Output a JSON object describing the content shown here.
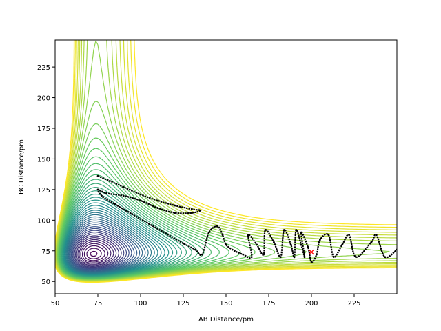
{
  "chart_data": {
    "type": "contour",
    "xlabel": "AB Distance/pm",
    "ylabel": "BC Distance/pm",
    "xlim": [
      50,
      250
    ],
    "ylim": [
      40,
      247
    ],
    "x_ticks": [
      50,
      75,
      100,
      125,
      150,
      175,
      200,
      225
    ],
    "y_ticks": [
      50,
      75,
      100,
      125,
      150,
      175,
      200,
      225
    ],
    "colormap": [
      "#440154",
      "#3b528b",
      "#21918c",
      "#5ec962",
      "#fde725"
    ],
    "contour_levels": 48,
    "trajectory_color": "#000000",
    "marker": {
      "x": 200,
      "y": 74,
      "symbol": "x",
      "color": "#ff0000"
    },
    "trajectory": [
      [
        75,
        136
      ],
      [
        82,
        132
      ],
      [
        90,
        127
      ],
      [
        100,
        121
      ],
      [
        110,
        116
      ],
      [
        120,
        112
      ],
      [
        130,
        109
      ],
      [
        135,
        108
      ],
      [
        130,
        106
      ],
      [
        120,
        106
      ],
      [
        110,
        110
      ],
      [
        100,
        116
      ],
      [
        90,
        120
      ],
      [
        80,
        122
      ],
      [
        75,
        125
      ],
      [
        78,
        119
      ],
      [
        85,
        113
      ],
      [
        95,
        105
      ],
      [
        105,
        97
      ],
      [
        115,
        89
      ],
      [
        125,
        81
      ],
      [
        132,
        76
      ],
      [
        136,
        72
      ],
      [
        140,
        90
      ],
      [
        145,
        95
      ],
      [
        148,
        88
      ],
      [
        150,
        80
      ],
      [
        155,
        75
      ],
      [
        160,
        72
      ],
      [
        165,
        70
      ],
      [
        163,
        88
      ],
      [
        168,
        80
      ],
      [
        172,
        72
      ],
      [
        173,
        92
      ],
      [
        178,
        82
      ],
      [
        182,
        70
      ],
      [
        184,
        92
      ],
      [
        188,
        80
      ],
      [
        190,
        70
      ],
      [
        191,
        92
      ],
      [
        194,
        80
      ],
      [
        196,
        70
      ],
      [
        194,
        90
      ],
      [
        198,
        78
      ],
      [
        200,
        66
      ],
      [
        203,
        72
      ],
      [
        205,
        84
      ],
      [
        210,
        88
      ],
      [
        213,
        70
      ],
      [
        218,
        80
      ],
      [
        222,
        88
      ],
      [
        226,
        70
      ],
      [
        235,
        82
      ],
      [
        238,
        88
      ],
      [
        243,
        70
      ],
      [
        250,
        76
      ]
    ]
  }
}
